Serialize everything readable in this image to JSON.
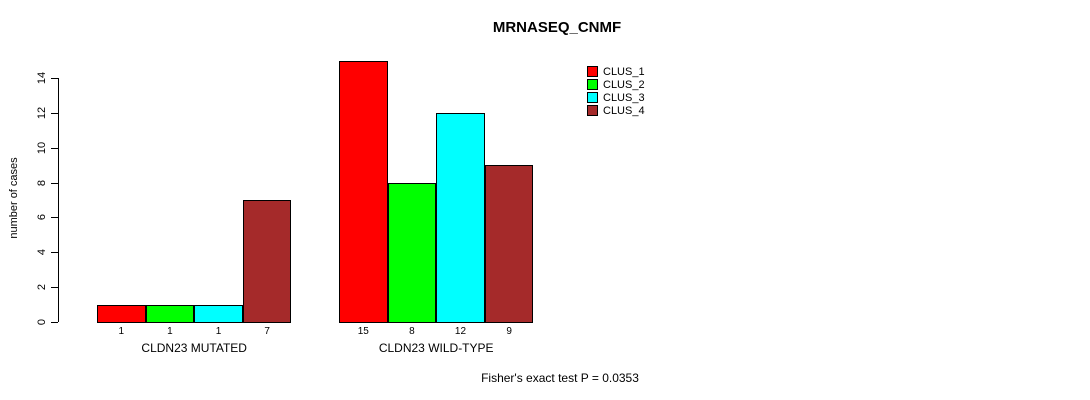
{
  "title": "MRNASEQ_CNMF",
  "ylabel": "number of cases",
  "footer": "Fisher's exact test P = 0.0353",
  "chart_data": {
    "type": "bar",
    "title": "MRNASEQ_CNMF",
    "ylabel": "number of cases",
    "xlabel": "",
    "categories": [
      "CLDN23 MUTATED",
      "CLDN23 WILD-TYPE"
    ],
    "series": [
      {
        "name": "CLUS_1",
        "color": "#FF0000",
        "values": [
          1,
          15
        ]
      },
      {
        "name": "CLUS_2",
        "color": "#00FF00",
        "values": [
          1,
          8
        ]
      },
      {
        "name": "CLUS_3",
        "color": "#00FFFF",
        "values": [
          1,
          12
        ]
      },
      {
        "name": "CLUS_4",
        "color": "#A52A2A",
        "values": [
          7,
          9
        ]
      }
    ],
    "bar_value_labels": [
      [
        "1",
        "1",
        "1",
        "7"
      ],
      [
        "15",
        "8",
        "12",
        "9"
      ]
    ],
    "yticks": [
      0,
      2,
      4,
      6,
      8,
      10,
      12,
      14
    ],
    "ylim": [
      0,
      15
    ],
    "grid": false,
    "legend_position": "top-right",
    "annotation": "Fisher's exact test P = 0.0353"
  }
}
